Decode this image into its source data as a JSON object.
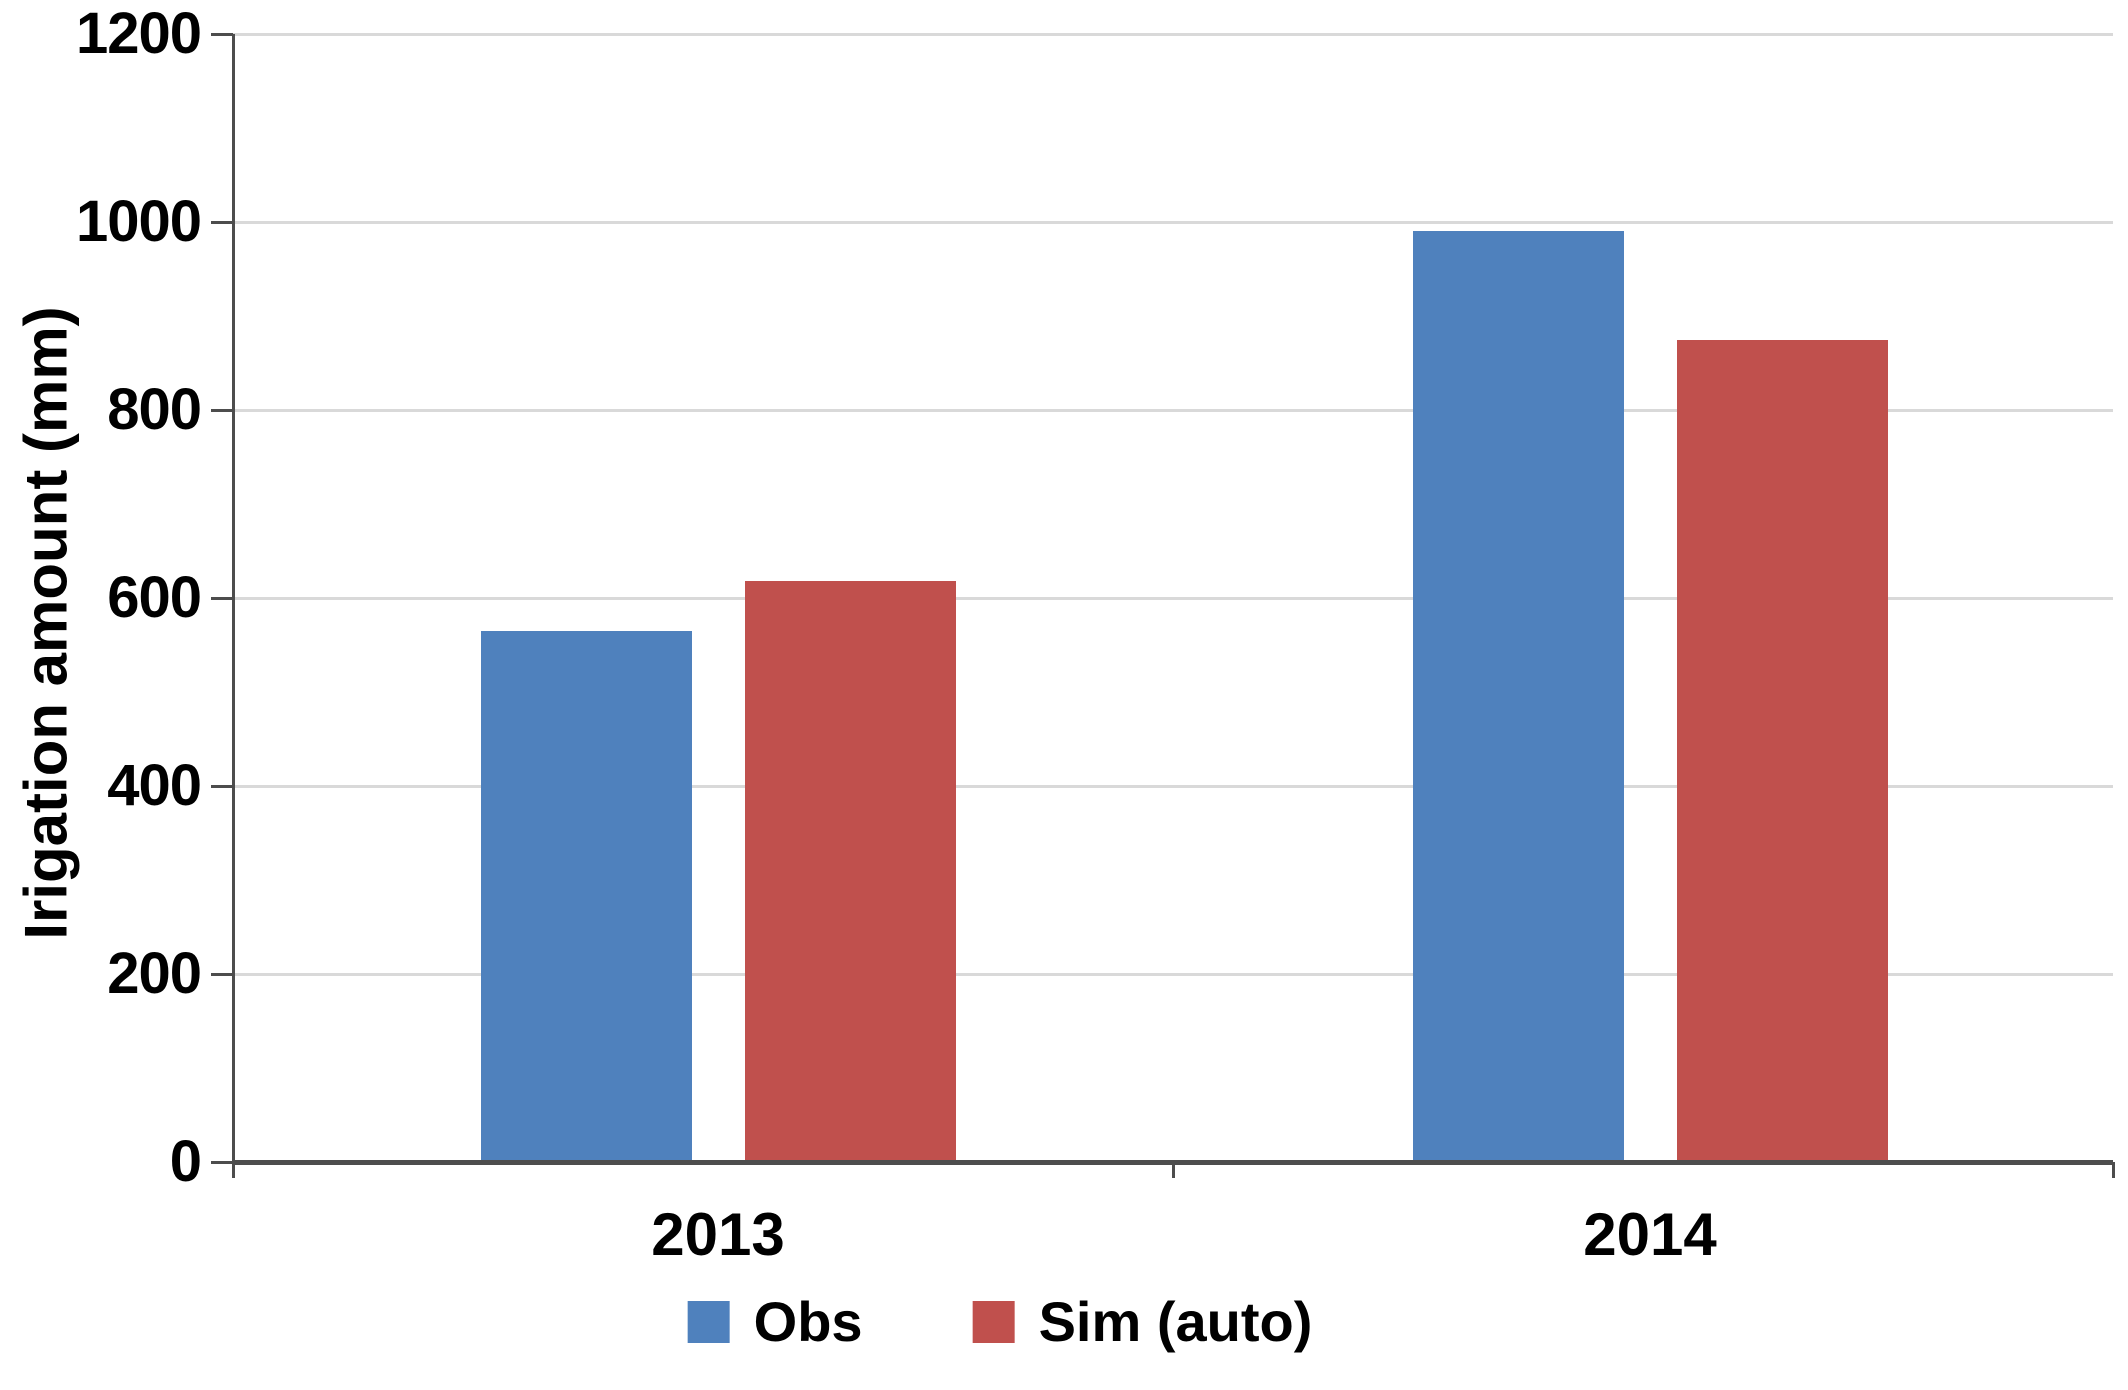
{
  "chart_data": {
    "type": "bar",
    "title": "",
    "categories": [
      "2013",
      "2014"
    ],
    "series": [
      {
        "name": "Obs",
        "color": "#4F81BD",
        "values": [
          565,
          990
        ]
      },
      {
        "name": "Sim (auto)",
        "color": "#C0504D",
        "values": [
          618,
          875
        ]
      }
    ],
    "xlabel": "",
    "ylabel": "Irigation amount (mm)",
    "ylim": [
      0,
      1200
    ],
    "yticks": [
      0,
      200,
      400,
      600,
      800,
      1000,
      1200
    ],
    "grid": "horizontal-only",
    "legend_position": "bottom-center"
  },
  "colors": {
    "obs_blue": "#4F81BD",
    "sim_red": "#C0504D",
    "gridline": "#d9d9d9",
    "axis": "#4d4d4d",
    "text": "#000000",
    "background": "#ffffff"
  }
}
